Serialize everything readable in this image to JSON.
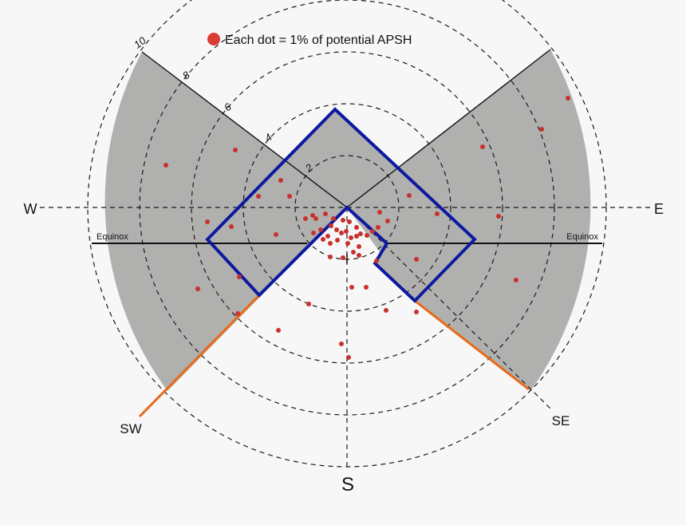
{
  "legend": {
    "text": "Each dot = 1% of potential APSH",
    "dot_color": "#d93b35"
  },
  "compass": {
    "w": "W",
    "e": "E",
    "s": "S",
    "sw": "SW",
    "se": "SE"
  },
  "equinox": {
    "left": "Equinox",
    "right": "Equinox"
  },
  "ring_labels": [
    "2",
    "4",
    "6",
    "8",
    "10"
  ],
  "colors": {
    "shade_fill": "#b0b1af",
    "outline_blue": "#0d1aa0",
    "sector_orange": "#e86a1a",
    "dot": "#c8312c",
    "background": "#f7f7f7"
  },
  "dot_count": 60
}
